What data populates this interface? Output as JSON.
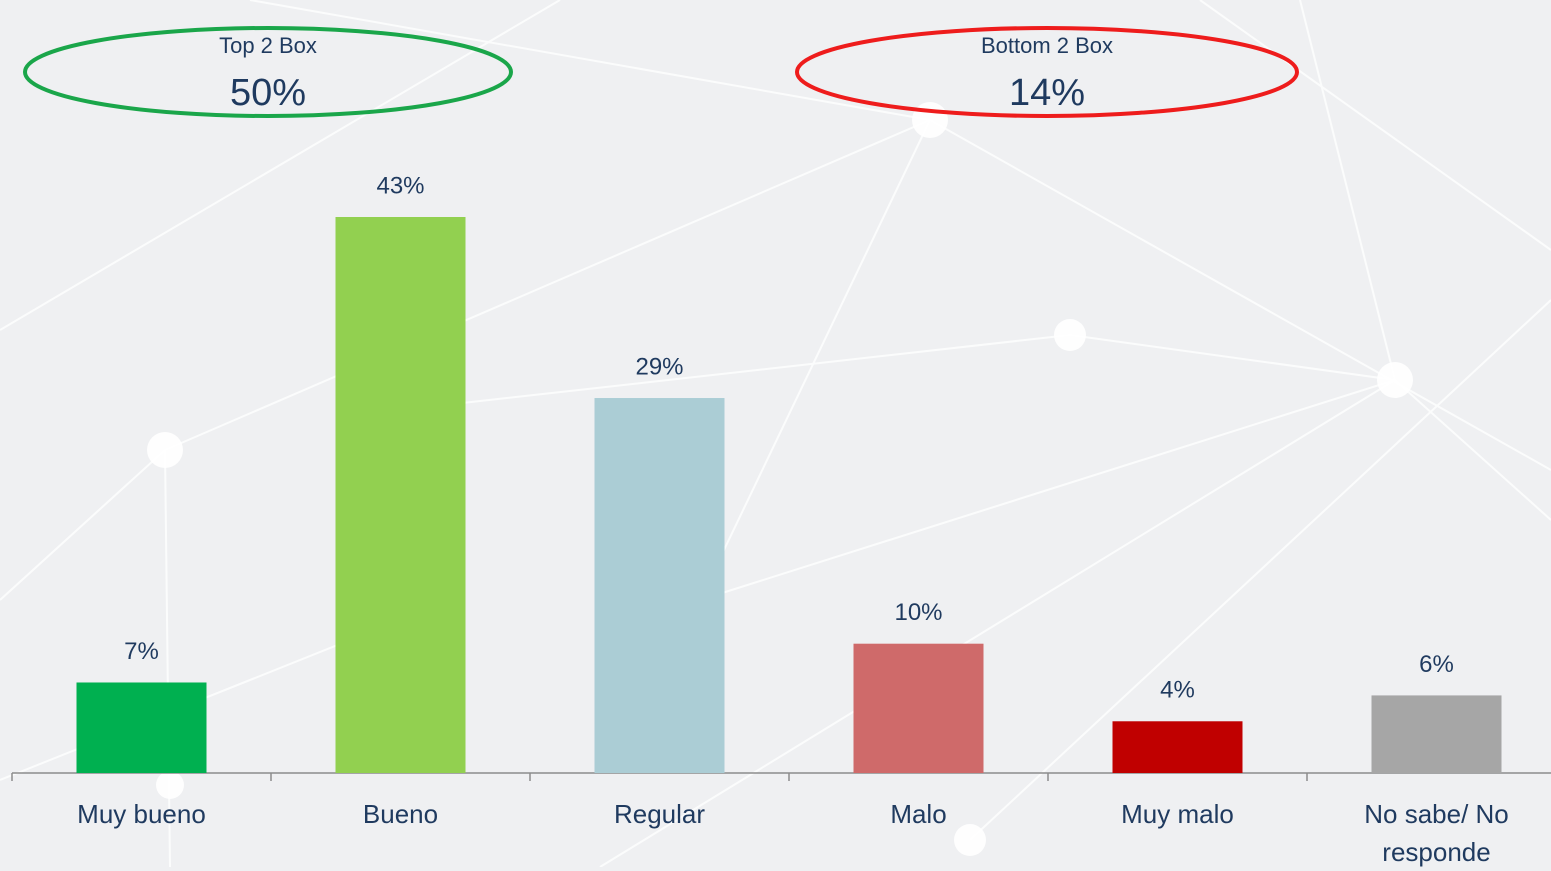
{
  "chart_data": {
    "type": "bar",
    "categories": [
      "Muy bueno",
      "Bueno",
      "Regular",
      "Malo",
      "Muy malo",
      "No sabe/ No responde"
    ],
    "values": [
      7,
      43,
      29,
      10,
      4,
      6
    ],
    "value_labels": [
      "7%",
      "43%",
      "29%",
      "10%",
      "4%",
      "6%"
    ],
    "colors": [
      "#00b050",
      "#92d050",
      "#abcdd5",
      "#cf6a6a",
      "#c00000",
      "#a6a6a6"
    ],
    "annotations": [
      {
        "label": "Top 2 Box",
        "value": "50%",
        "color": "#1aa64a"
      },
      {
        "label": "Bottom 2 Box",
        "value": "14%",
        "color": "#ee1c1c"
      }
    ]
  }
}
